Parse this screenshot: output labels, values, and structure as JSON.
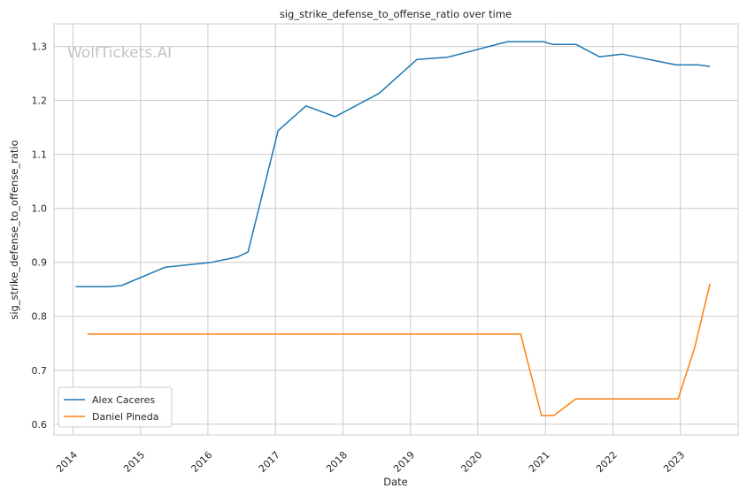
{
  "chart_data": {
    "type": "line",
    "title": "sig_strike_defense_to_offense_ratio over time",
    "xlabel": "Date",
    "ylabel": "sig_strike_defense_to_offense_ratio",
    "watermark": "WolfTickets.AI",
    "x_ticks": [
      "2014",
      "2015",
      "2016",
      "2017",
      "2018",
      "2019",
      "2020",
      "2021",
      "2022",
      "2023"
    ],
    "y_ticks": [
      "0.6",
      "0.7",
      "0.8",
      "0.9",
      "1.0",
      "1.1",
      "1.2",
      "1.3"
    ],
    "xlim": [
      "2013-09-20",
      "2023-11-10"
    ],
    "ylim": [
      0.58,
      1.342
    ],
    "grid": true,
    "legend_position": "lower-left",
    "series": [
      {
        "name": "Alex Caceres",
        "color": "#1f77b4",
        "points": [
          [
            "2014-01-15",
            0.855
          ],
          [
            "2014-07-15",
            0.855
          ],
          [
            "2014-09-20",
            0.857
          ],
          [
            "2015-05-15",
            0.891
          ],
          [
            "2016-01-20",
            0.9
          ],
          [
            "2016-06-10",
            0.91
          ],
          [
            "2016-08-05",
            0.919
          ],
          [
            "2017-01-15",
            1.144
          ],
          [
            "2017-06-15",
            1.19
          ],
          [
            "2017-11-20",
            1.17
          ],
          [
            "2018-07-15",
            1.213
          ],
          [
            "2019-02-05",
            1.276
          ],
          [
            "2019-07-20",
            1.28
          ],
          [
            "2020-06-10",
            1.309
          ],
          [
            "2020-08-20",
            1.309
          ],
          [
            "2020-12-20",
            1.309
          ],
          [
            "2021-02-10",
            1.304
          ],
          [
            "2021-06-15",
            1.304
          ],
          [
            "2021-10-20",
            1.281
          ],
          [
            "2022-02-20",
            1.286
          ],
          [
            "2022-12-10",
            1.266
          ],
          [
            "2023-04-10",
            1.266
          ],
          [
            "2023-06-10",
            1.263
          ]
        ]
      },
      {
        "name": "Daniel Pineda",
        "color": "#ff7f0e",
        "points": [
          [
            "2014-03-20",
            0.767
          ],
          [
            "2020-08-20",
            0.767
          ],
          [
            "2020-12-10",
            0.616
          ],
          [
            "2021-02-15",
            0.616
          ],
          [
            "2021-06-15",
            0.647
          ],
          [
            "2022-10-20",
            0.647
          ],
          [
            "2022-12-20",
            0.647
          ],
          [
            "2023-03-20",
            0.742
          ],
          [
            "2023-06-10",
            0.86
          ]
        ]
      }
    ]
  }
}
